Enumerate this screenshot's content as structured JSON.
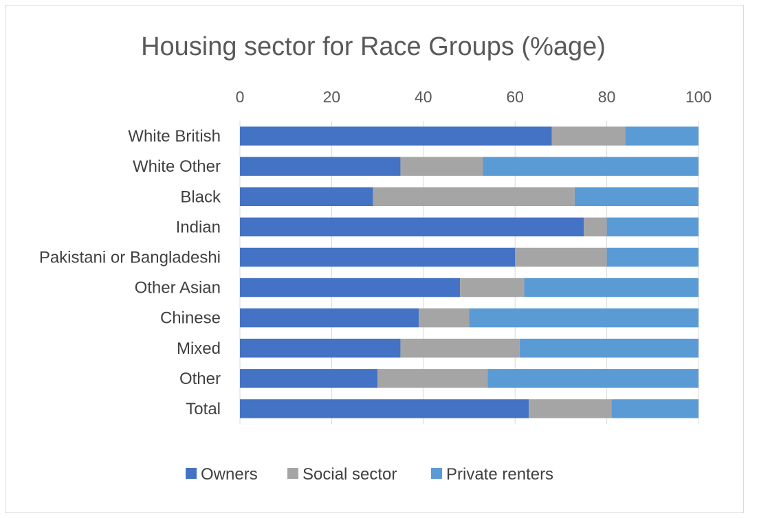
{
  "chart_data": {
    "type": "bar",
    "orientation": "horizontal",
    "stacked": true,
    "title": "Housing sector for Race Groups (%age)",
    "xlabel": "",
    "ylabel": "",
    "xlim": [
      0,
      100
    ],
    "xticks": [
      0,
      20,
      40,
      60,
      80,
      100
    ],
    "grid": true,
    "legend_position": "bottom",
    "categories": [
      "White British",
      "White Other",
      "Black",
      "Indian",
      "Pakistani or Bangladeshi",
      "Other Asian",
      "Chinese",
      "Mixed",
      "Other",
      "Total"
    ],
    "series": [
      {
        "name": "Owners",
        "color": "#4472c4",
        "values": [
          68,
          35,
          29,
          75,
          60,
          48,
          39,
          35,
          30,
          63
        ]
      },
      {
        "name": "Social sector",
        "color": "#a5a5a5",
        "values": [
          16,
          18,
          44,
          5,
          20,
          14,
          11,
          26,
          24,
          18
        ]
      },
      {
        "name": "Private renters",
        "color": "#5b9bd5",
        "values": [
          16,
          47,
          27,
          20,
          20,
          38,
          50,
          39,
          46,
          19
        ]
      }
    ]
  }
}
